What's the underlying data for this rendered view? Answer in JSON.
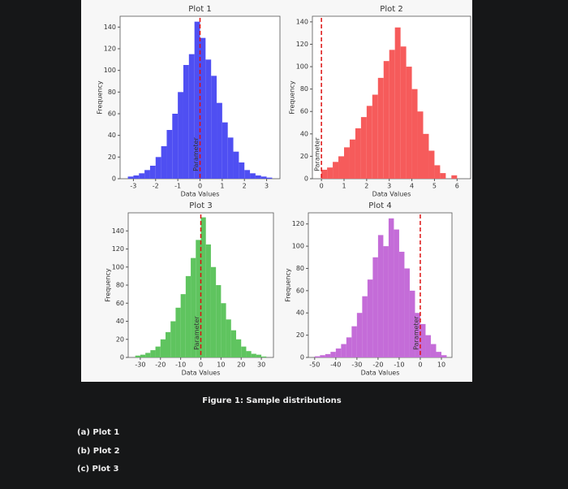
{
  "chart_data": [
    {
      "type": "histogram",
      "title": "Plot 1",
      "xlabel": "Data Values",
      "ylabel": "Frequency",
      "color": "#4f4ff2",
      "bins": [
        -3.25,
        -3,
        -2.75,
        -2.5,
        -2.25,
        -2,
        -1.75,
        -1.5,
        -1.25,
        -1,
        -0.75,
        -0.5,
        -0.25,
        0,
        0.25,
        0.5,
        0.75,
        1,
        1.25,
        1.5,
        1.75,
        2,
        2.25,
        2.5,
        2.75,
        3,
        3.25
      ],
      "values": [
        2,
        3,
        5,
        8,
        12,
        20,
        30,
        45,
        60,
        80,
        105,
        115,
        145,
        130,
        110,
        95,
        70,
        52,
        38,
        25,
        15,
        8,
        5,
        3,
        2,
        1
      ],
      "xlim": [
        -3.6,
        3.6
      ],
      "ylim": [
        0,
        150
      ],
      "xticks": [
        -3,
        -2,
        -1,
        0,
        1,
        2,
        3
      ],
      "yticks": [
        0,
        20,
        40,
        60,
        80,
        100,
        120,
        140
      ],
      "vline": 0,
      "annotation": "Parameter"
    },
    {
      "type": "histogram",
      "title": "Plot 2",
      "xlabel": "Data Values",
      "ylabel": "Frequency",
      "color": "#f65b5b",
      "bins": [
        0,
        0.25,
        0.5,
        0.75,
        1,
        1.25,
        1.5,
        1.75,
        2,
        2.25,
        2.5,
        2.75,
        3,
        3.25,
        3.5,
        3.75,
        4,
        4.25,
        4.5,
        4.75,
        5,
        5.25,
        5.5,
        5.75,
        6
      ],
      "values": [
        8,
        10,
        15,
        20,
        28,
        35,
        45,
        55,
        65,
        75,
        90,
        105,
        115,
        135,
        118,
        100,
        80,
        60,
        40,
        25,
        12,
        5,
        0,
        3
      ],
      "xlim": [
        -0.4,
        6.6
      ],
      "ylim": [
        0,
        145
      ],
      "xticks": [
        0,
        1,
        2,
        3,
        4,
        5,
        6
      ],
      "yticks": [
        0,
        20,
        40,
        60,
        80,
        100,
        120,
        140
      ],
      "vline": 0,
      "annotation": "Parameter"
    },
    {
      "type": "histogram",
      "title": "Plot 3",
      "xlabel": "Data Values",
      "ylabel": "Frequency",
      "color": "#5fc45f",
      "bins": [
        -32.5,
        -30,
        -27.5,
        -25,
        -22.5,
        -20,
        -17.5,
        -15,
        -12.5,
        -10,
        -7.5,
        -5,
        -2.5,
        0,
        2.5,
        5,
        7.5,
        10,
        12.5,
        15,
        17.5,
        20,
        22.5,
        25,
        27.5,
        30,
        32.5
      ],
      "values": [
        2,
        3,
        5,
        8,
        12,
        20,
        28,
        40,
        55,
        70,
        90,
        110,
        130,
        155,
        125,
        100,
        80,
        60,
        42,
        30,
        20,
        12,
        7,
        4,
        3,
        1
      ],
      "xlim": [
        -36,
        36
      ],
      "ylim": [
        0,
        160
      ],
      "xticks": [
        -30,
        -20,
        -10,
        0,
        10,
        20,
        30
      ],
      "yticks": [
        0,
        20,
        40,
        60,
        80,
        100,
        120,
        140
      ],
      "vline": 0,
      "annotation": "Parameter"
    },
    {
      "type": "histogram",
      "title": "Plot 4",
      "xlabel": "Data Values",
      "ylabel": "Frequency",
      "color": "#c46cd8",
      "bins": [
        -50,
        -47.5,
        -45,
        -42.5,
        -40,
        -37.5,
        -35,
        -32.5,
        -30,
        -27.5,
        -25,
        -22.5,
        -20,
        -17.5,
        -15,
        -12.5,
        -10,
        -7.5,
        -5,
        -2.5,
        0,
        2.5,
        5,
        7.5,
        10,
        12.5
      ],
      "values": [
        1,
        2,
        3,
        5,
        8,
        12,
        18,
        28,
        40,
        55,
        70,
        90,
        110,
        100,
        125,
        115,
        95,
        80,
        60,
        40,
        30,
        20,
        12,
        5,
        2
      ],
      "xlim": [
        -53,
        15
      ],
      "ylim": [
        0,
        130
      ],
      "xticks": [
        -50,
        -40,
        -30,
        -20,
        -10,
        0,
        10
      ],
      "yticks": [
        0,
        20,
        40,
        60,
        80,
        100,
        120
      ],
      "vline": 0,
      "annotation": "Parameter"
    }
  ],
  "caption": "Figure 1: Sample distributions",
  "options": [
    "(a)  Plot 1",
    "(b)  Plot 2",
    "(c)  Plot 3"
  ]
}
